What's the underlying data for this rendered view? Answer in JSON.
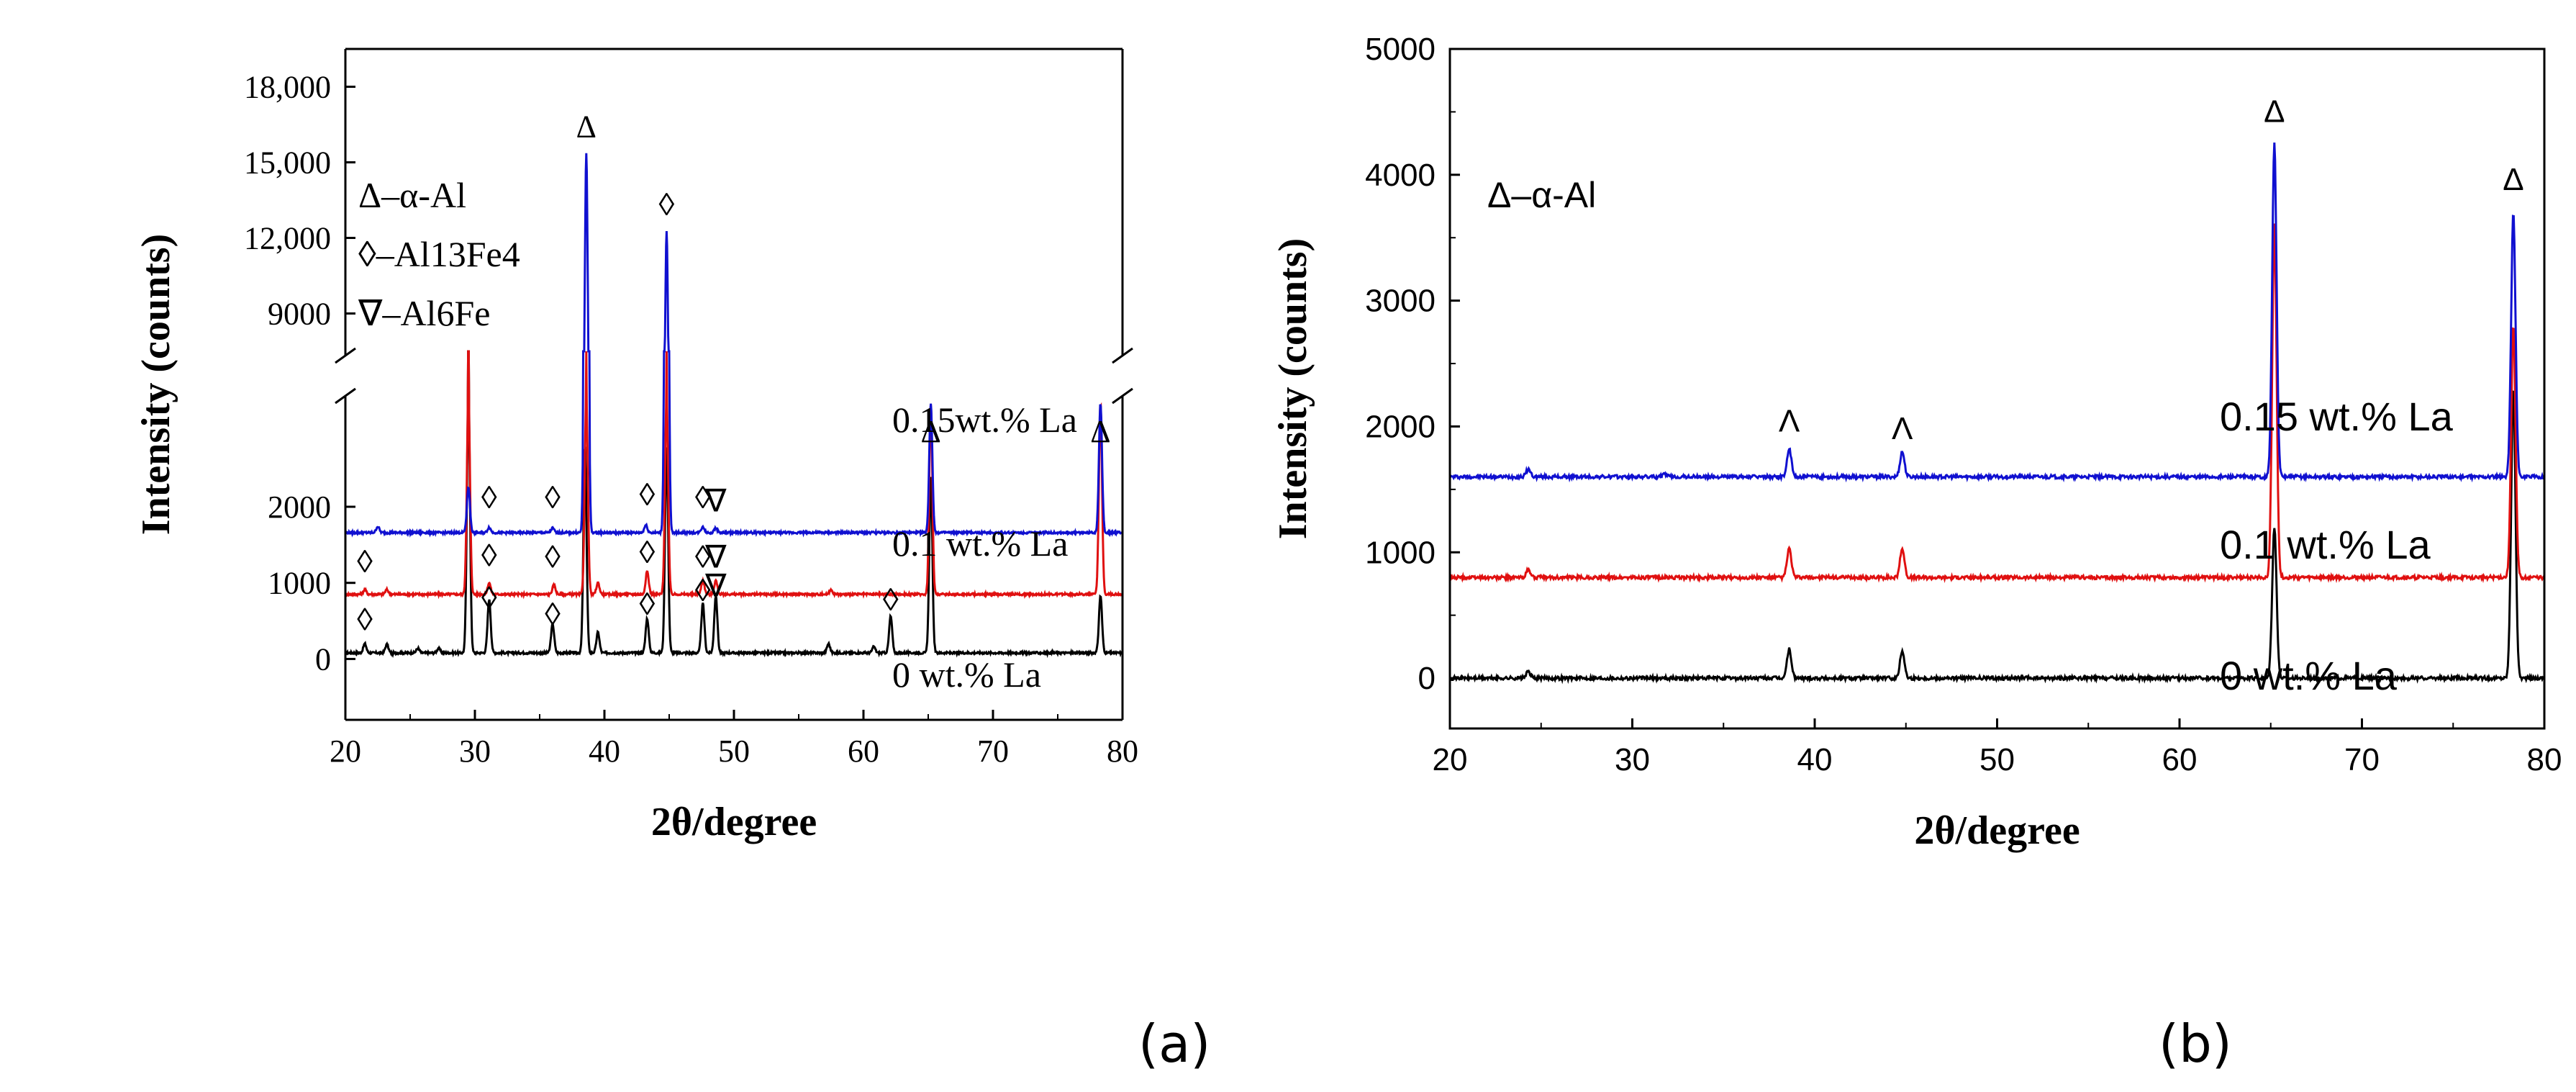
{
  "chart_data": [
    {
      "panel": "a",
      "type": "line",
      "caption": "(a)",
      "xlabel": "2θ/degree",
      "ylabel": "Intensity (counts)",
      "xlim": [
        20,
        80
      ],
      "xticks": [
        20,
        30,
        40,
        50,
        60,
        70,
        80
      ],
      "ylim_lower": [
        -800,
        3400
      ],
      "ylim_upper": [
        7500,
        19500
      ],
      "y_break": true,
      "yticks_lower": [
        {
          "value": 0,
          "label": "0"
        },
        {
          "value": 1000,
          "label": "1000"
        },
        {
          "value": 2000,
          "label": "2000"
        }
      ],
      "yticks_upper": [
        {
          "value": 9000,
          "label": "9000"
        },
        {
          "value": 12000,
          "label": "12,000"
        },
        {
          "value": 15000,
          "label": "15,000"
        },
        {
          "value": 18000,
          "label": "18,000"
        }
      ],
      "legend": {
        "position": "top-left",
        "items": [
          {
            "symbol": "Δ",
            "text": "–α-Al"
          },
          {
            "symbol": "◊",
            "text": "–Al13Fe4"
          },
          {
            "symbol": "∇",
            "text": "–Al6Fe"
          }
        ]
      },
      "series": [
        {
          "name": "0 wt.% La",
          "label": "0 wt.% La",
          "color": "#000000",
          "offset": 80,
          "peaks": [
            [
              21.5,
              120
            ],
            [
              23.2,
              110
            ],
            [
              25.6,
              60
            ],
            [
              27.2,
              60
            ],
            [
              29.5,
              3400
            ],
            [
              31.1,
              700
            ],
            [
              36,
              380
            ],
            [
              38.5,
              2700
            ],
            [
              39.5,
              270
            ],
            [
              43.3,
              450
            ],
            [
              44.8,
              2700
            ],
            [
              47.6,
              650
            ],
            [
              48.6,
              750
            ],
            [
              57.3,
              120
            ],
            [
              60.8,
              80
            ],
            [
              62.1,
              480
            ],
            [
              65.2,
              2300
            ],
            [
              78.3,
              750
            ]
          ]
        },
        {
          "name": "0.1 wt.% La",
          "label": "0.1 wt.% La",
          "color": "#e01010",
          "offset": 850,
          "peaks": [
            [
              21.5,
              60
            ],
            [
              23.2,
              60
            ],
            [
              29.5,
              2600
            ],
            [
              31.1,
              150
            ],
            [
              36.1,
              120
            ],
            [
              38.6,
              2600
            ],
            [
              39.5,
              150
            ],
            [
              43.3,
              300
            ],
            [
              44.8,
              2600
            ],
            [
              47.6,
              180
            ],
            [
              48.6,
              180
            ],
            [
              57.5,
              60
            ],
            [
              65.2,
              2500
            ],
            [
              78.3,
              2500
            ]
          ]
        },
        {
          "name": "0.15wt.% La",
          "label": "0.15wt.% La",
          "color": "#1010d0",
          "offset": 1660,
          "peaks": [
            [
              22.5,
              80
            ],
            [
              29.5,
              600
            ],
            [
              31.1,
              70
            ],
            [
              36,
              60
            ],
            [
              38.6,
              13700
            ],
            [
              43.2,
              100
            ],
            [
              44.8,
              10600
            ],
            [
              47.6,
              80
            ],
            [
              48.6,
              60
            ],
            [
              65.2,
              1700
            ],
            [
              78.3,
              1700
            ]
          ]
        }
      ],
      "phase_markers": [
        {
          "symbol": "Δ",
          "x": 38.6,
          "y": 16000
        },
        {
          "symbol": "◊",
          "x": 44.8,
          "y": 12900
        },
        {
          "symbol": "Δ",
          "x": 65.2,
          "y": 2850
        },
        {
          "symbol": "Δ",
          "x": 78.3,
          "y": 2850
        },
        {
          "symbol": "◊",
          "x": 31.1,
          "y": 1980
        },
        {
          "symbol": "◊",
          "x": 36.0,
          "y": 1980
        },
        {
          "symbol": "◊",
          "x": 43.3,
          "y": 2020
        },
        {
          "symbol": "◊",
          "x": 47.6,
          "y": 1980
        },
        {
          "symbol": "∇",
          "x": 48.6,
          "y": 1940
        },
        {
          "symbol": "◊",
          "x": 21.5,
          "y": 1140
        },
        {
          "symbol": "◊",
          "x": 31.1,
          "y": 1220
        },
        {
          "symbol": "◊",
          "x": 36.0,
          "y": 1200
        },
        {
          "symbol": "◊",
          "x": 43.3,
          "y": 1260
        },
        {
          "symbol": "◊",
          "x": 47.6,
          "y": 1200
        },
        {
          "symbol": "∇",
          "x": 48.6,
          "y": 1200
        },
        {
          "symbol": "◊",
          "x": 21.5,
          "y": 380
        },
        {
          "symbol": "◊",
          "x": 31.1,
          "y": 660
        },
        {
          "symbol": "◊",
          "x": 36.0,
          "y": 450
        },
        {
          "symbol": "◊",
          "x": 43.3,
          "y": 580
        },
        {
          "symbol": "◊",
          "x": 47.6,
          "y": 760
        },
        {
          "symbol": "∇",
          "x": 48.6,
          "y": 820
        },
        {
          "symbol": "◊",
          "x": 62.1,
          "y": 640
        }
      ]
    },
    {
      "panel": "b",
      "type": "line",
      "caption": "(b)",
      "xlabel": "2θ/degree",
      "ylabel": "Intensity (counts)",
      "xlim": [
        20,
        80
      ],
      "xticks": [
        20,
        30,
        40,
        50,
        60,
        70,
        80
      ],
      "ylim": [
        -400,
        5000
      ],
      "yticks": [
        0,
        1000,
        2000,
        3000,
        4000,
        5000
      ],
      "legend": {
        "position": "top-left",
        "items": [
          {
            "symbol": "Δ",
            "text": "–α-Al"
          }
        ]
      },
      "series": [
        {
          "name": "0 wt.% La",
          "label": "0 wt.% La",
          "color": "#000000",
          "offset": 0,
          "peaks": [
            [
              24.3,
              50
            ],
            [
              38.6,
              230
            ],
            [
              44.8,
              220
            ],
            [
              65.2,
              1200
            ],
            [
              78.3,
              2300
            ]
          ]
        },
        {
          "name": "0.1 wt.% La",
          "label": "0.1 wt.% La",
          "color": "#e01010",
          "offset": 800,
          "peaks": [
            [
              24.3,
              60
            ],
            [
              38.6,
              230
            ],
            [
              44.8,
              230
            ],
            [
              65.2,
              2800
            ],
            [
              78.3,
              2000
            ]
          ]
        },
        {
          "name": "0.15 wt.% La",
          "label": "0.15 wt.% La",
          "color": "#1010d0",
          "offset": 1600,
          "peaks": [
            [
              24.3,
              60
            ],
            [
              31.8,
              20
            ],
            [
              38.6,
              220
            ],
            [
              44.8,
              200
            ],
            [
              65.2,
              2650
            ],
            [
              78.3,
              2100
            ]
          ]
        }
      ],
      "phase_markers": [
        {
          "symbol": "Δ",
          "x": 65.2,
          "y": 4420
        },
        {
          "symbol": "Δ",
          "x": 78.3,
          "y": 3880
        },
        {
          "symbol": "Λ",
          "x": 38.6,
          "y": 1960
        },
        {
          "symbol": "Λ",
          "x": 44.8,
          "y": 1900
        }
      ]
    }
  ]
}
